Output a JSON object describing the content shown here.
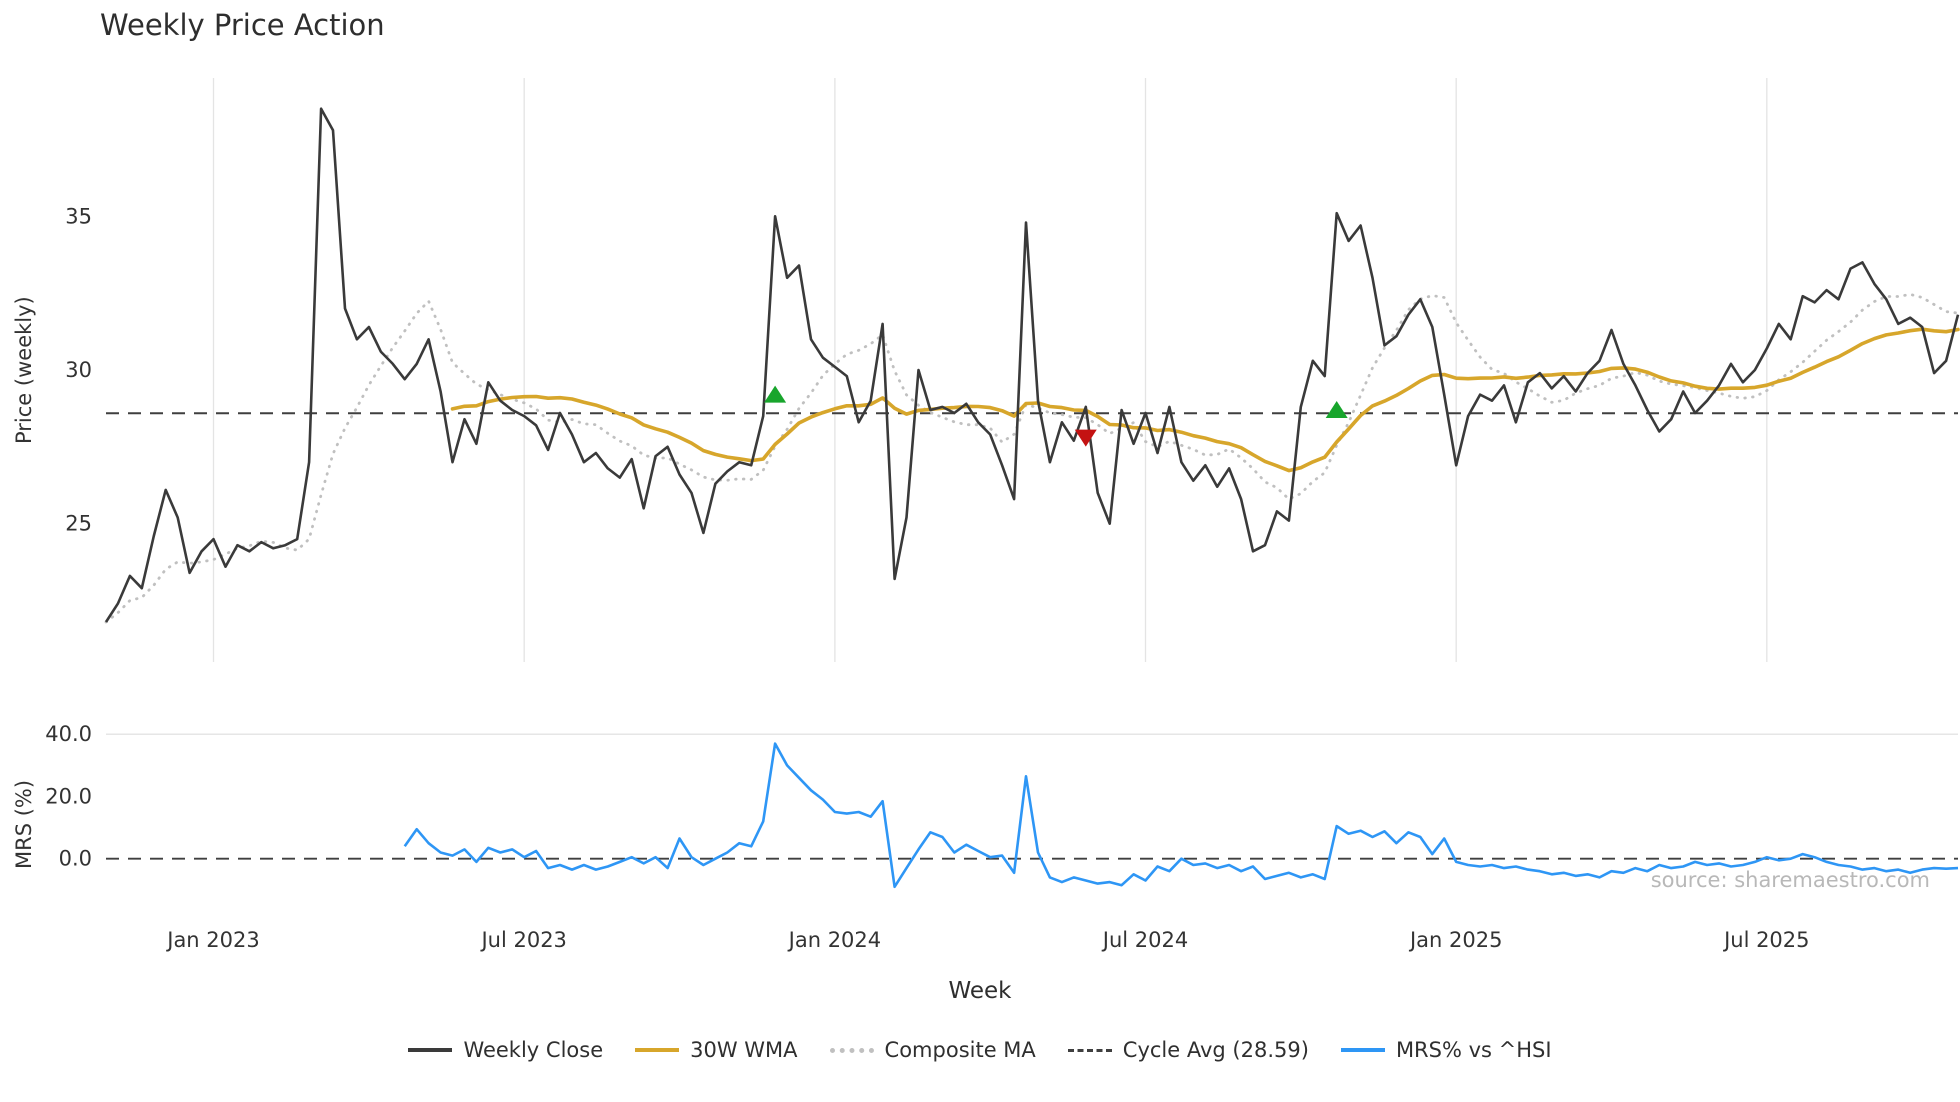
{
  "title": "Weekly Price Action",
  "xlabel": "Week",
  "watermark": "source: sharemaestro.com",
  "legend": {
    "weekly_close": "Weekly Close",
    "wma": "30W WMA",
    "composite": "Composite MA",
    "cycle_avg": "Cycle Avg (28.59)",
    "mrs": "MRS% vs ^HSI"
  },
  "colors": {
    "close": "#3a3a3a",
    "wma": "#d7a62b",
    "composite": "#c0c0c0",
    "cycle": "#3f3f3f",
    "mrs": "#2e96f5",
    "buy": "#18a52c",
    "sell": "#c41212",
    "grid": "#e4e4e4",
    "tick_text": "#333333"
  },
  "chart_data": {
    "type": "line",
    "n_points": 156,
    "x": {
      "tick_labels": [
        "Jan 2023",
        "Jul 2023",
        "Jan 2024",
        "Jul 2024",
        "Jan 2025",
        "Jul 2025"
      ],
      "tick_indices": [
        9,
        35,
        61,
        87,
        113,
        139
      ]
    },
    "panels": [
      {
        "name": "price",
        "ylabel": "Price (weekly)",
        "yticks": [
          25,
          30,
          35
        ],
        "ytick_labels": [
          "25",
          "30",
          "35"
        ],
        "ylim": [
          20.5,
          39.5
        ],
        "cycle_avg": 28.59,
        "wma_window": 30,
        "composite_window": 10,
        "weekly_close": [
          21.8,
          22.4,
          23.3,
          22.9,
          24.6,
          26.1,
          25.2,
          23.4,
          24.1,
          24.5,
          23.6,
          24.3,
          24.1,
          24.4,
          24.2,
          24.3,
          24.5,
          27.0,
          38.5,
          37.8,
          32.0,
          31.0,
          31.4,
          30.6,
          30.2,
          29.7,
          30.2,
          31.0,
          29.3,
          27.0,
          28.4,
          27.6,
          29.6,
          29.0,
          28.7,
          28.5,
          28.2,
          27.4,
          28.6,
          27.9,
          27.0,
          27.3,
          26.8,
          26.5,
          27.1,
          25.5,
          27.2,
          27.5,
          26.6,
          26.0,
          24.7,
          26.3,
          26.7,
          27.0,
          26.9,
          28.5,
          35.0,
          33.0,
          33.4,
          31.0,
          30.4,
          30.1,
          29.8,
          28.3,
          29.0,
          31.5,
          23.2,
          25.2,
          30.0,
          28.7,
          28.8,
          28.6,
          28.9,
          28.3,
          27.9,
          26.9,
          25.8,
          34.8,
          29.0,
          27.0,
          28.3,
          27.7,
          28.8,
          26.0,
          25.0,
          28.7,
          27.6,
          28.6,
          27.3,
          28.8,
          27.0,
          26.4,
          26.9,
          26.2,
          26.8,
          25.8,
          24.1,
          24.3,
          25.4,
          25.1,
          28.8,
          30.3,
          29.8,
          35.1,
          34.2,
          34.7,
          33.0,
          30.8,
          31.1,
          31.8,
          32.3,
          31.4,
          29.2,
          26.9,
          28.5,
          29.2,
          29.0,
          29.5,
          28.3,
          29.6,
          29.9,
          29.4,
          29.8,
          29.3,
          29.9,
          30.3,
          31.3,
          30.2,
          29.5,
          28.7,
          28.0,
          28.4,
          29.3,
          28.6,
          29.0,
          29.5,
          30.2,
          29.6,
          30.0,
          30.7,
          31.5,
          31.0,
          32.4,
          32.2,
          32.6,
          32.3,
          33.3,
          33.5,
          32.8,
          32.3,
          31.5,
          31.7,
          31.4,
          29.9,
          30.3,
          31.8
        ],
        "signals": [
          {
            "type": "buy",
            "index": 56,
            "price": 29.2
          },
          {
            "type": "sell",
            "index": 82,
            "price": 27.8
          },
          {
            "type": "buy",
            "index": 103,
            "price": 28.7
          }
        ]
      },
      {
        "name": "mrs",
        "ylabel": "MRS (%)",
        "yticks": [
          0.0,
          20.0,
          40.0
        ],
        "ytick_labels": [
          "0.0",
          "20.0",
          "40.0"
        ],
        "ylim": [
          -20,
          42
        ],
        "zero_line": 0.0,
        "start_index": 25,
        "values": [
          4,
          9.5,
          5,
          2,
          1,
          3,
          -1,
          3.5,
          2,
          3,
          0.5,
          2.5,
          -3,
          -2,
          -3.5,
          -2,
          -3.5,
          -2.5,
          -1,
          0.5,
          -1.5,
          0.5,
          -3,
          6.5,
          0.5,
          -2,
          0,
          2,
          5,
          4,
          12,
          37,
          30,
          26,
          22,
          19,
          15,
          14.5,
          15,
          13.5,
          18.5,
          -9,
          -3,
          3,
          8.5,
          7,
          2,
          4.5,
          2.5,
          0.5,
          1,
          -4.5,
          26.5,
          2,
          -6,
          -7.5,
          -6,
          -7,
          -8,
          -7.5,
          -8.5,
          -5,
          -7,
          -2.5,
          -4,
          0,
          -2,
          -1.5,
          -3,
          -2,
          -4,
          -2.5,
          -6.5,
          -5.5,
          -4.5,
          -6,
          -5,
          -6.5,
          10.5,
          8,
          9,
          7,
          8.8,
          5,
          8.5,
          7,
          1.5,
          6.5,
          -1,
          -2,
          -2.5,
          -2,
          -3,
          -2.5,
          -3.5,
          -4,
          -5,
          -4.5,
          -5.5,
          -5,
          -6,
          -4,
          -4.5,
          -3,
          -4,
          -2,
          -3,
          -2.5,
          -1,
          -2,
          -1.5,
          -2.5,
          -2,
          -1,
          0.5,
          -0.5,
          0,
          1.5,
          0.5,
          -1,
          -2,
          -2.5,
          -3.5,
          -3,
          -4,
          -3.5,
          -4.5,
          -3.5,
          -3,
          -3.2,
          -3
        ]
      }
    ]
  }
}
